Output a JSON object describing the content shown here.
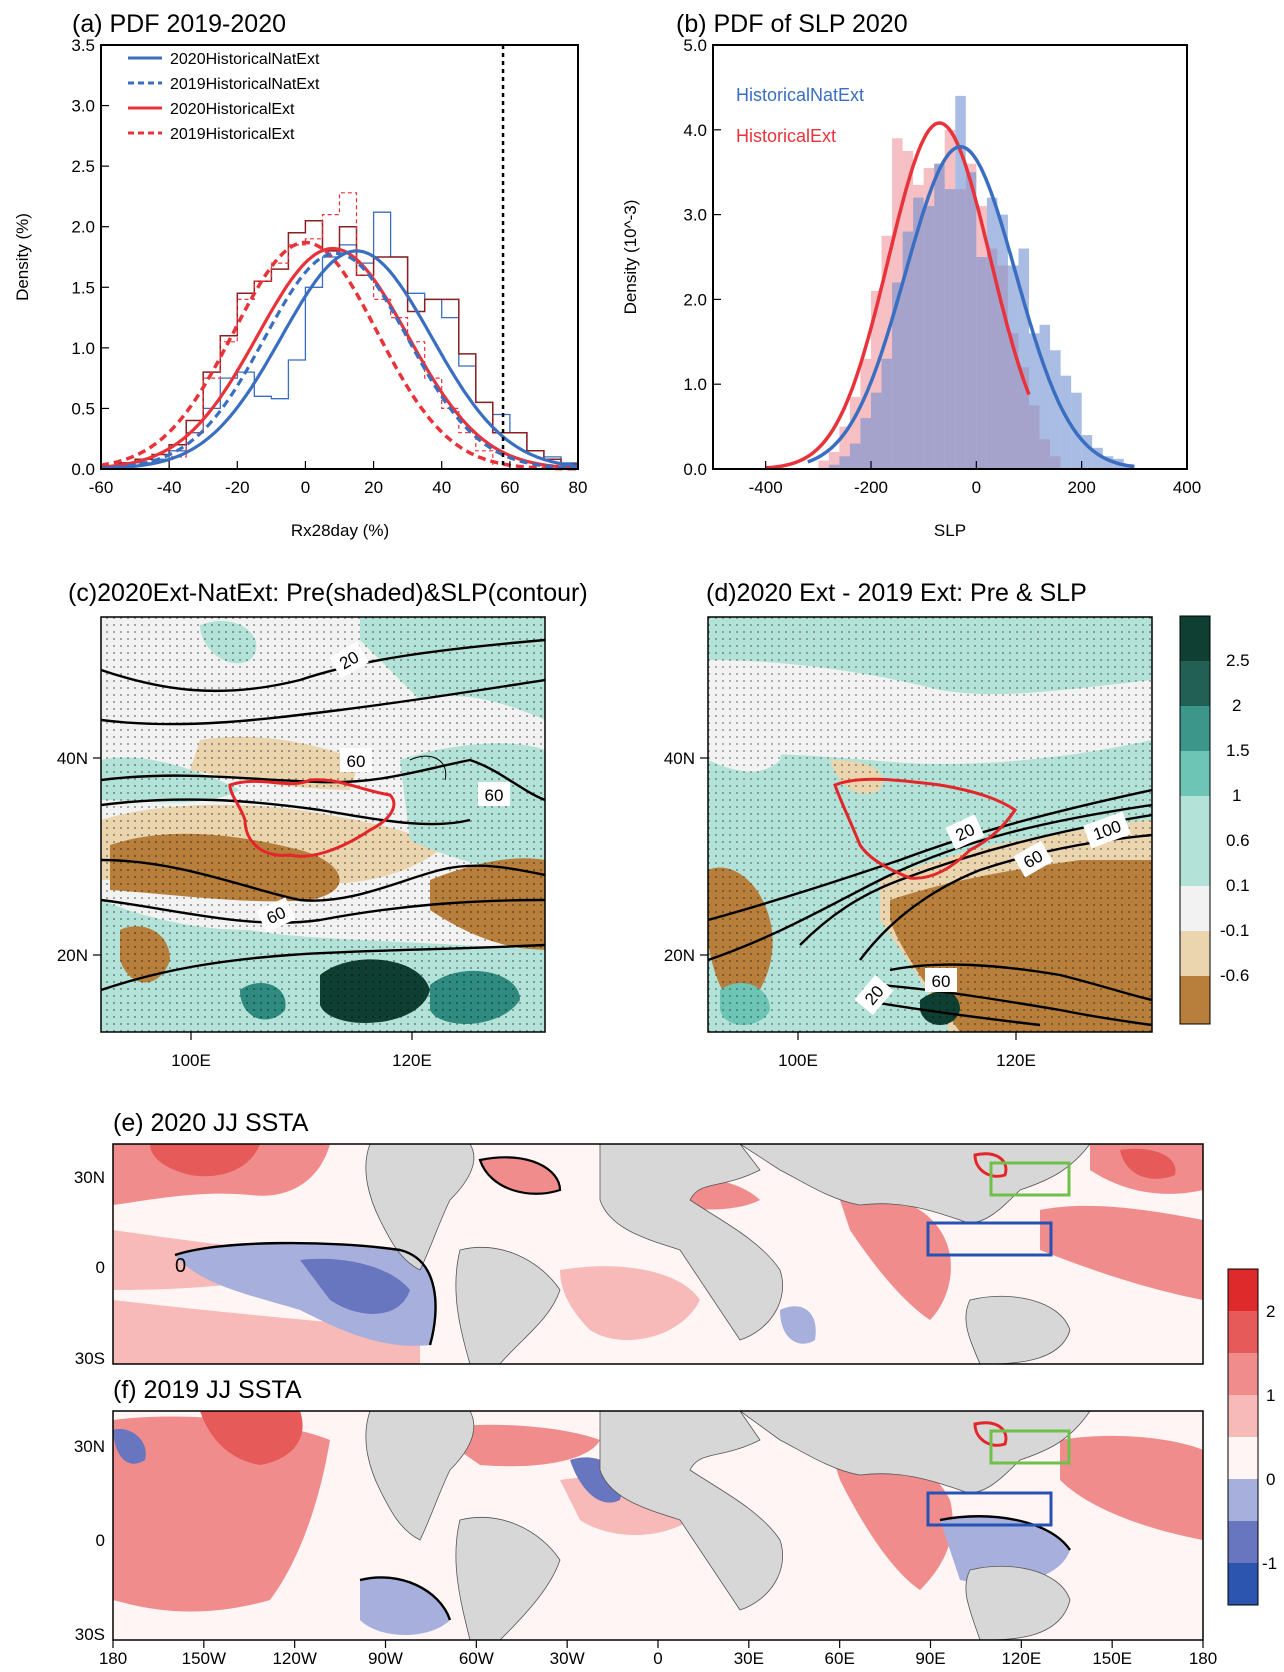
{
  "panels": {
    "a": {
      "title": "(a) PDF 2019-2020",
      "xlabel": "Rx28day (%)",
      "ylabel": "Density (%)",
      "legend": [
        "2020HistoricalNatExt",
        "2019HistoricalNatExt",
        "2020HistoricalExt",
        "2019HistoricalExt"
      ]
    },
    "b": {
      "title": "(b) PDF of SLP 2020",
      "xlabel": "SLP",
      "ylabel": "Density (10^-3)",
      "legend": [
        "HistoricalNatExt",
        "HistoricalExt"
      ]
    },
    "c": {
      "title": "(c)2020Ext-NatExt: Pre(shaded)&SLP(contour)"
    },
    "d": {
      "title": "(d)2020 Ext - 2019 Ext: Pre & SLP"
    },
    "e": {
      "title": "(e) 2020 JJ  SSTA"
    },
    "f": {
      "title": "(f) 2019 JJ  SSTA"
    }
  },
  "colors": {
    "nat": "#3a6ec0",
    "ext": "#e8333a",
    "brownbar": "#8b1f1f",
    "brown": "#b87f3c",
    "tan": "#ead5ae",
    "lightteal": "#b3e3d8",
    "teal": "#6dc5b5",
    "dteal": "#2f8a7f",
    "dkteal": "#0f3f33",
    "land": "#d7d7d7",
    "red1": "#f8b9b9",
    "red2": "#f08c8c",
    "red3": "#e75a5a",
    "red4": "#de2a2a",
    "blue1": "#a7b0dc",
    "blue2": "#6875bf",
    "blue3": "#2c55b0",
    "box_blue": "#2752b5",
    "box_green": "#6ec04a",
    "box_red": "#e3262a"
  },
  "chart_data": [
    {
      "panel": "a",
      "type": "line",
      "title": "(a) PDF 2019-2020",
      "xlabel": "Rx28day (%)",
      "ylabel": "Density (%)",
      "xlim": [
        -60,
        80
      ],
      "ylim": [
        0,
        3.5
      ],
      "xticks": [
        -60,
        -40,
        -20,
        0,
        20,
        40,
        60,
        80
      ],
      "yticks": [
        0,
        0.5,
        1.0,
        1.5,
        2.0,
        2.5,
        3.0,
        3.5
      ],
      "ytick_labels": [
        "0.0",
        "0.5",
        "1.0",
        "1.5",
        "2.0",
        "2.5",
        "3.0",
        "3.5"
      ],
      "threshold_x": 58,
      "series": [
        {
          "name": "2020HistoricalNatExt",
          "mean": 15,
          "sd": 22,
          "peak": 1.8,
          "bins": [
            -60,
            -55,
            -50,
            -45,
            -40,
            -35,
            -30,
            -25,
            -20,
            -15,
            -10,
            -5,
            0,
            5,
            10,
            15,
            20,
            25,
            30,
            35,
            40,
            45,
            50,
            55,
            60,
            65,
            70,
            75,
            80
          ],
          "hist": [
            0.02,
            0.04,
            0.05,
            0.08,
            0.15,
            0.3,
            0.5,
            0.75,
            0.8,
            0.6,
            0.58,
            0.9,
            1.5,
            1.75,
            1.85,
            1.7,
            2.12,
            1.75,
            1.45,
            1.4,
            1.25,
            0.85,
            0.55,
            0.45,
            0.3,
            0.15,
            0.1,
            0.05
          ]
        },
        {
          "name": "2019HistoricalNatExt",
          "mean": 9,
          "sd": 21,
          "peak": 1.78
        },
        {
          "name": "2020HistoricalExt",
          "mean": 8,
          "sd": 22,
          "peak": 1.82,
          "bins": [
            -60,
            -55,
            -50,
            -45,
            -40,
            -35,
            -30,
            -25,
            -20,
            -15,
            -10,
            -5,
            0,
            5,
            10,
            15,
            20,
            25,
            30,
            35,
            40,
            45,
            50,
            55,
            60,
            65,
            70,
            75,
            80
          ],
          "hist": [
            0.02,
            0.05,
            0.08,
            0.12,
            0.2,
            0.4,
            0.8,
            1.1,
            1.45,
            1.55,
            1.65,
            1.95,
            2.05,
            1.8,
            2.0,
            1.6,
            1.75,
            1.75,
            1.3,
            1.4,
            1.4,
            0.95,
            0.55,
            0.3,
            0.3,
            0.15,
            0.08,
            0.04
          ]
        },
        {
          "name": "2019HistoricalExt",
          "mean": 0,
          "sd": 21,
          "peak": 1.87,
          "bins": [
            -40,
            -35,
            -30,
            -25,
            -20,
            -15,
            -10,
            -5,
            0,
            5,
            10,
            15,
            20,
            25,
            30,
            35,
            40,
            45,
            50,
            55
          ],
          "hist": [
            0.1,
            0.3,
            0.75,
            1.05,
            1.4,
            1.55,
            1.7,
            1.85,
            1.9,
            2.1,
            2.28,
            1.6,
            1.4,
            1.25,
            1.05,
            0.75,
            0.5,
            0.3,
            0.15
          ]
        }
      ]
    },
    {
      "panel": "b",
      "type": "line",
      "title": "(b) PDF of SLP 2020",
      "xlabel": "SLP",
      "ylabel": "Density (10^-3)",
      "xlim": [
        -500,
        400
      ],
      "ylim": [
        0,
        5.0
      ],
      "xticks": [
        -400,
        -200,
        0,
        200,
        400
      ],
      "yticks": [
        0,
        1.0,
        2.0,
        3.0,
        4.0,
        5.0
      ],
      "ytick_labels": [
        "0.0",
        "1.0",
        "2.0",
        "3.0",
        "4.0",
        "5.0"
      ],
      "series": [
        {
          "name": "HistoricalNatExt",
          "mean": -30,
          "sd": 105,
          "peak": 3.8,
          "bins": [
            -280,
            -260,
            -240,
            -220,
            -200,
            -180,
            -160,
            -140,
            -120,
            -100,
            -80,
            -60,
            -40,
            -20,
            0,
            20,
            40,
            60,
            80,
            100,
            120,
            140,
            160,
            180,
            200,
            220,
            240,
            260,
            280,
            300
          ],
          "hist": [
            0.05,
            0.15,
            0.3,
            0.6,
            0.9,
            1.3,
            2.2,
            2.8,
            3.2,
            3.1,
            3.6,
            3.3,
            4.4,
            3.5,
            2.5,
            3.2,
            3.0,
            2.4,
            2.6,
            1.6,
            1.7,
            1.4,
            1.1,
            0.9,
            0.4,
            0.25,
            0.15,
            0.12,
            0.06
          ]
        },
        {
          "name": "HistoricalExt",
          "mean": -70,
          "sd": 97,
          "peak": 4.08,
          "bins": [
            -300,
            -280,
            -260,
            -240,
            -220,
            -200,
            -180,
            -160,
            -140,
            -120,
            -100,
            -80,
            -60,
            -40,
            -20,
            0,
            20,
            40,
            60,
            80,
            100,
            120,
            140,
            160
          ],
          "hist": [
            0.1,
            0.2,
            0.5,
            0.85,
            1.3,
            2.1,
            2.75,
            3.9,
            3.75,
            3.35,
            3.55,
            3.6,
            4.0,
            3.3,
            3.6,
            3.1,
            2.6,
            2.4,
            1.6,
            1.2,
            0.75,
            0.35,
            0.15
          ]
        }
      ]
    },
    {
      "panel": "c",
      "type": "heatmap",
      "title": "(c)2020Ext-NatExt: Pre(shaded)&SLP(contour)",
      "xticks": [
        "100E",
        "120E"
      ],
      "yticks": [
        "40N",
        "20N"
      ],
      "contour_labels": [
        "20",
        "60",
        "60",
        "60"
      ]
    },
    {
      "panel": "d",
      "type": "heatmap",
      "title": "(d)2020 Ext - 2019 Ext: Pre & SLP",
      "xticks": [
        "100E",
        "120E"
      ],
      "yticks": [
        "40N",
        "20N"
      ],
      "contour_labels": [
        "20",
        "60",
        "100",
        "60",
        "20"
      ],
      "colorbar": {
        "levels": [
          "2.5",
          "2",
          "1.5",
          "1",
          "0.6",
          "0.1",
          "-0.1",
          "-0.6"
        ]
      }
    },
    {
      "panel": "e",
      "type": "heatmap",
      "title": "(e) 2020 JJ  SSTA",
      "xticks": [
        "180",
        "150W",
        "120W",
        "90W",
        "60W",
        "30W",
        "0",
        "30E",
        "60E",
        "90E",
        "120E",
        "150E",
        "180"
      ],
      "yticks": [
        "30N",
        "0",
        "30S"
      ],
      "contour_labels": [
        "0"
      ],
      "colorbar": {
        "levels": [
          "2",
          "1",
          "0",
          "-1"
        ]
      }
    },
    {
      "panel": "f",
      "type": "heatmap",
      "title": "(f) 2019 JJ  SSTA",
      "xticks": [
        "180",
        "150W",
        "120W",
        "90W",
        "60W",
        "30W",
        "0",
        "30E",
        "60E",
        "90E",
        "120E",
        "150E",
        "180"
      ],
      "yticks": [
        "30N",
        "0",
        "30S"
      ]
    }
  ]
}
